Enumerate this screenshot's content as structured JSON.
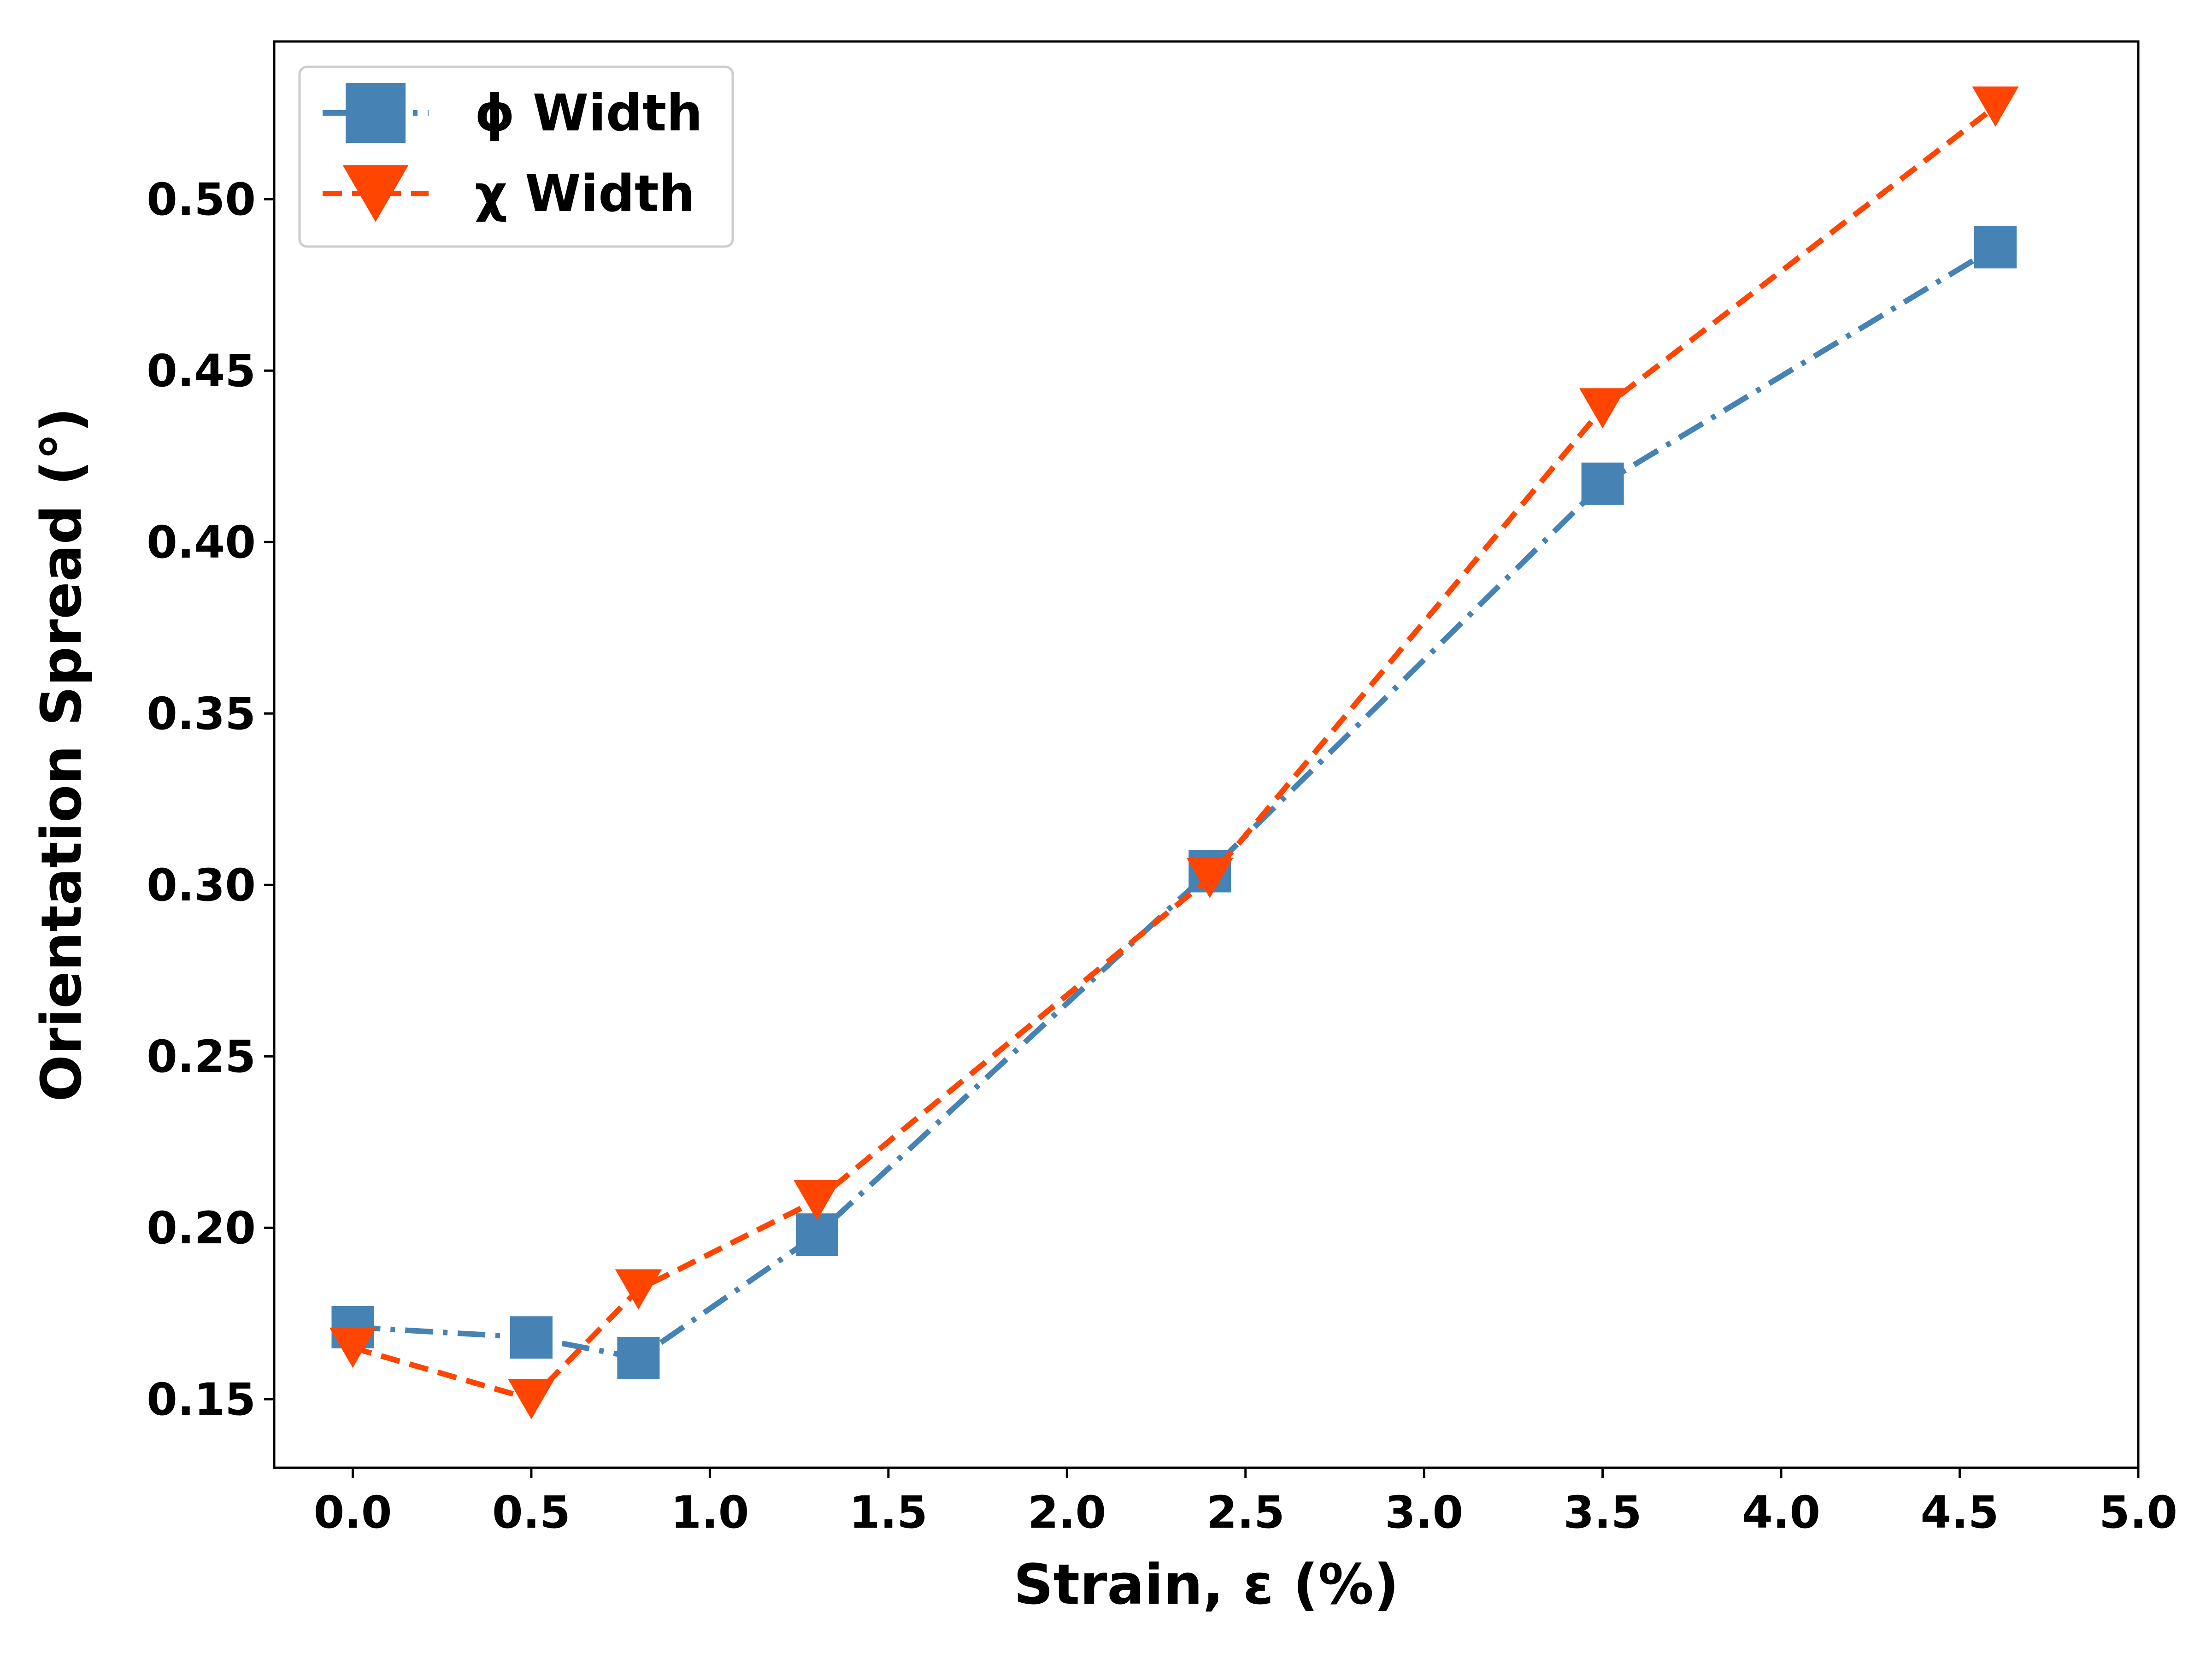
{
  "chart_data": {
    "type": "line",
    "title": "",
    "xlabel": "Strain, ε (%)",
    "ylabel": "Orientation Spread (°)",
    "xlim": [
      -0.22,
      5.0
    ],
    "ylim": [
      0.13,
      0.546
    ],
    "xticks": [
      0.0,
      0.5,
      1.0,
      1.5,
      2.0,
      2.5,
      3.0,
      3.5,
      4.0,
      4.5,
      5.0
    ],
    "xtick_labels": [
      "0.0",
      "0.5",
      "1.0",
      "1.5",
      "2.0",
      "2.5",
      "3.0",
      "3.5",
      "4.0",
      "4.5",
      "5.0"
    ],
    "yticks": [
      0.15,
      0.2,
      0.25,
      0.3,
      0.35,
      0.4,
      0.45,
      0.5
    ],
    "ytick_labels": [
      "0.15",
      "0.20",
      "0.25",
      "0.30",
      "0.35",
      "0.40",
      "0.45",
      "0.50"
    ],
    "grid": false,
    "legend_position": "top-left",
    "series": [
      {
        "name": "ϕ Width",
        "color": "#4682b4",
        "marker": "square",
        "line_style": "dash-dot",
        "x": [
          0.0,
          0.5,
          0.8,
          1.3,
          2.4,
          3.5,
          4.6
        ],
        "y": [
          0.171,
          0.168,
          0.162,
          0.198,
          0.304,
          0.417,
          0.486
        ]
      },
      {
        "name": "χ Width",
        "color": "#ff4500",
        "marker": "triangle-down",
        "line_style": "dashed",
        "x": [
          0.0,
          0.5,
          0.8,
          1.3,
          2.4,
          3.5,
          4.6
        ],
        "y": [
          0.165,
          0.15,
          0.182,
          0.208,
          0.302,
          0.439,
          0.527
        ]
      }
    ]
  }
}
